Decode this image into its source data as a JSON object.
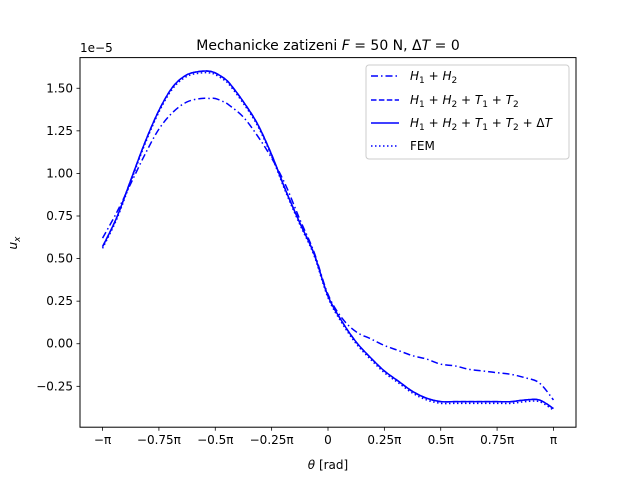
{
  "chart_data": {
    "type": "line",
    "title": "Mechanicke zatizeni F = 50 N, ΔT = 0",
    "xlabel": "θ [rad]",
    "ylabel": "u_x",
    "offset_text": "1e−5",
    "xlim": [
      -3.4558,
      3.4558
    ],
    "ylim": [
      -4.9e-06,
      1.68e-05
    ],
    "x_ticks": [
      {
        "value": -3.14159,
        "label": "−π"
      },
      {
        "value": -2.35619,
        "label": "−0.75π"
      },
      {
        "value": -1.5708,
        "label": "−0.5π"
      },
      {
        "value": -0.7854,
        "label": "−0.25π"
      },
      {
        "value": 0,
        "label": "0"
      },
      {
        "value": 0.7854,
        "label": "0.25π"
      },
      {
        "value": 1.5708,
        "label": "0.5π"
      },
      {
        "value": 2.35619,
        "label": "0.75π"
      },
      {
        "value": 3.14159,
        "label": "π"
      }
    ],
    "y_ticks": [
      {
        "value": -2.5e-06,
        "label": "−0.25"
      },
      {
        "value": 0,
        "label": "0.00"
      },
      {
        "value": 2.5e-06,
        "label": "0.25"
      },
      {
        "value": 5e-06,
        "label": "0.50"
      },
      {
        "value": 7.5e-06,
        "label": "0.75"
      },
      {
        "value": 1e-05,
        "label": "1.00"
      },
      {
        "value": 1.25e-05,
        "label": "1.25"
      },
      {
        "value": 1.5e-05,
        "label": "1.50"
      }
    ],
    "grid": false,
    "legend_position": "upper right",
    "color": "#0000ff",
    "x": [
      -3.1416,
      -2.9452,
      -2.7489,
      -2.5525,
      -2.3562,
      -2.1598,
      -1.9635,
      -1.7671,
      -1.6493,
      -1.5708,
      -1.453,
      -1.3744,
      -1.1781,
      -0.9817,
      -0.7854,
      -0.589,
      -0.3927,
      -0.1963,
      0,
      0.1963,
      0.3927,
      0.589,
      0.7854,
      0.9817,
      1.1781,
      1.3744,
      1.5708,
      1.7671,
      1.9635,
      2.1598,
      2.3562,
      2.5525,
      2.7489,
      2.9452,
      3.1416
    ],
    "series": [
      {
        "name": "H1 + H2",
        "label_tex": "H_1 + H_2",
        "dash": "7 3 1.5 3",
        "values": [
          6.2e-06,
          7.7e-06,
          9.4e-06,
          1.11e-05,
          1.26e-05,
          1.36e-05,
          1.42e-05,
          1.44e-05,
          1.44e-05,
          1.44e-05,
          1.42e-05,
          1.4e-05,
          1.33e-05,
          1.22e-05,
          1.09e-05,
          9.3e-06,
          7.3e-06,
          5.4e-06,
          2.9e-06,
          1.5e-06,
          7e-07,
          3e-07,
          -1e-07,
          -4e-07,
          -7e-07,
          -9e-07,
          -1.2e-06,
          -1.3e-06,
          -1.5e-06,
          -1.6e-06,
          -1.7e-06,
          -1.8e-06,
          -2e-06,
          -2.3e-06,
          -3.3e-06
        ]
      },
      {
        "name": "H1 + H2 + T1 + T2",
        "label_tex": "H_1 + H_2 + T_1 + T_2",
        "dash": "5.5 2.4",
        "values": [
          5.7e-06,
          7.4e-06,
          9.6e-06,
          1.18e-05,
          1.37e-05,
          1.51e-05,
          1.58e-05,
          1.6e-05,
          1.6e-05,
          1.59e-05,
          1.56e-05,
          1.53e-05,
          1.42e-05,
          1.29e-05,
          1.11e-05,
          9e-06,
          7.1e-06,
          5.3e-06,
          2.8e-06,
          1.3e-06,
          1e-07,
          -8e-07,
          -1.6e-06,
          -2.2e-06,
          -2.8e-06,
          -3.2e-06,
          -3.4e-06,
          -3.4e-06,
          -3.4e-06,
          -3.4e-06,
          -3.4e-06,
          -3.4e-06,
          -3.3e-06,
          -3.3e-06,
          -3.8e-06
        ]
      },
      {
        "name": "H1 + H2 + T1 + T2 + ΔT",
        "label_tex": "H_1 + H_2 + T_1 + T_2 + ΔT",
        "dash": "",
        "values": [
          5.7e-06,
          7.4e-06,
          9.6e-06,
          1.18e-05,
          1.37e-05,
          1.51e-05,
          1.58e-05,
          1.6e-05,
          1.6e-05,
          1.59e-05,
          1.56e-05,
          1.53e-05,
          1.42e-05,
          1.29e-05,
          1.11e-05,
          9e-06,
          7.1e-06,
          5.3e-06,
          2.8e-06,
          1.3e-06,
          1e-07,
          -8e-07,
          -1.6e-06,
          -2.2e-06,
          -2.8e-06,
          -3.2e-06,
          -3.4e-06,
          -3.4e-06,
          -3.4e-06,
          -3.4e-06,
          -3.4e-06,
          -3.4e-06,
          -3.3e-06,
          -3.3e-06,
          -3.8e-06
        ]
      },
      {
        "name": "FEM",
        "label_tex": "FEM",
        "dash": "1.5 2.5",
        "values": [
          5.6e-06,
          7.3e-06,
          9.5e-06,
          1.17e-05,
          1.36e-05,
          1.5e-05,
          1.57e-05,
          1.59e-05,
          1.59e-05,
          1.58e-05,
          1.55e-05,
          1.52e-05,
          1.41e-05,
          1.28e-05,
          1.1e-05,
          8.9e-06,
          7e-06,
          5.2e-06,
          2.7e-06,
          1.2e-06,
          0,
          -9e-07,
          -1.7e-06,
          -2.3e-06,
          -2.9e-06,
          -3.3e-06,
          -3.5e-06,
          -3.5e-06,
          -3.5e-06,
          -3.5e-06,
          -3.5e-06,
          -3.5e-06,
          -3.4e-06,
          -3.4e-06,
          -3.9e-06
        ]
      }
    ]
  }
}
